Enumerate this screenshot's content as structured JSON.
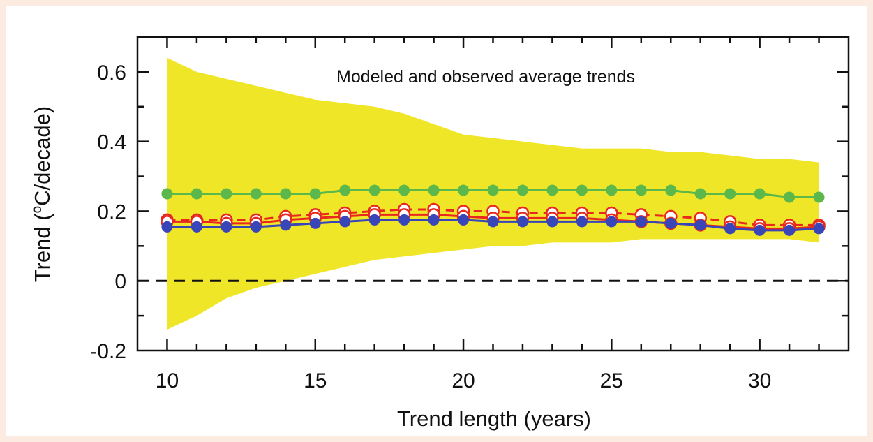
{
  "chart_data": {
    "type": "line",
    "title": "Modeled and observed average trends",
    "xlabel": "Trend length (years)",
    "ylabel_prefix": "Trend (",
    "ylabel_sup": "o",
    "ylabel_suffix": "C/decade)",
    "xlim": [
      9,
      33
    ],
    "ylim": [
      -0.2,
      0.7
    ],
    "x_ticks": [
      10,
      15,
      20,
      25,
      30
    ],
    "x_tick_labels": [
      "10",
      "15",
      "20",
      "25",
      "30"
    ],
    "y_ticks": [
      -0.2,
      0,
      0.2,
      0.4,
      0.6
    ],
    "y_tick_labels": [
      "-0.2",
      "0",
      "0.2",
      "0.4",
      "0.6"
    ],
    "x": [
      10,
      11,
      12,
      13,
      14,
      15,
      16,
      17,
      18,
      19,
      20,
      21,
      22,
      23,
      24,
      25,
      26,
      27,
      28,
      29,
      30,
      31,
      32
    ],
    "envelope": {
      "color": "#f0e628",
      "upper": [
        0.64,
        0.6,
        0.58,
        0.56,
        0.54,
        0.52,
        0.51,
        0.5,
        0.48,
        0.45,
        0.42,
        0.41,
        0.4,
        0.39,
        0.38,
        0.38,
        0.38,
        0.37,
        0.37,
        0.36,
        0.35,
        0.35,
        0.34
      ],
      "lower": [
        -0.14,
        -0.1,
        -0.05,
        -0.02,
        0.0,
        0.02,
        0.04,
        0.06,
        0.07,
        0.08,
        0.09,
        0.1,
        0.1,
        0.11,
        0.11,
        0.11,
        0.12,
        0.12,
        0.12,
        0.12,
        0.12,
        0.12,
        0.11
      ]
    },
    "zero_line": {
      "y": 0,
      "style": "dashed"
    },
    "grid": false,
    "series": [
      {
        "color": "#5cb84a",
        "marker": "filled",
        "values": [
          0.25,
          0.25,
          0.25,
          0.25,
          0.25,
          0.25,
          0.26,
          0.26,
          0.26,
          0.26,
          0.26,
          0.26,
          0.26,
          0.26,
          0.26,
          0.26,
          0.26,
          0.26,
          0.25,
          0.25,
          0.25,
          0.24,
          0.24
        ]
      },
      {
        "color": "#e8281e",
        "marker": "open",
        "dashed": true,
        "values": [
          0.175,
          0.175,
          0.175,
          0.175,
          0.185,
          0.19,
          0.195,
          0.2,
          0.205,
          0.205,
          0.2,
          0.2,
          0.195,
          0.195,
          0.195,
          0.195,
          0.19,
          0.185,
          0.18,
          0.17,
          0.16,
          0.16,
          0.16
        ]
      },
      {
        "color": "#e8281e",
        "marker": "open",
        "dashed": false,
        "values": [
          0.17,
          0.17,
          0.165,
          0.165,
          0.175,
          0.18,
          0.185,
          0.19,
          0.19,
          0.19,
          0.185,
          0.18,
          0.18,
          0.18,
          0.18,
          0.175,
          0.17,
          0.165,
          0.16,
          0.155,
          0.15,
          0.15,
          0.155
        ]
      },
      {
        "color": "#3946b8",
        "marker": "filled",
        "values": [
          0.155,
          0.155,
          0.155,
          0.155,
          0.16,
          0.165,
          0.17,
          0.175,
          0.175,
          0.175,
          0.175,
          0.17,
          0.17,
          0.17,
          0.17,
          0.17,
          0.17,
          0.165,
          0.16,
          0.15,
          0.145,
          0.145,
          0.15
        ]
      }
    ]
  }
}
